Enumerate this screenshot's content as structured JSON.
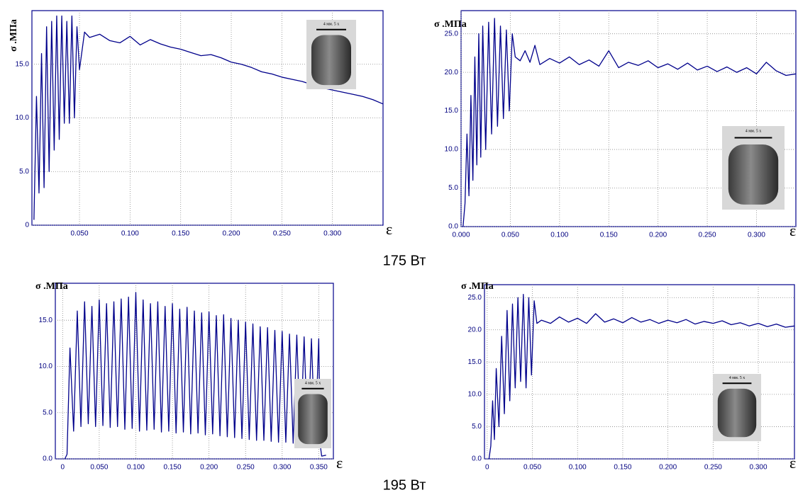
{
  "chart_data": [
    {
      "type": "line",
      "x_label": "ε",
      "y_label": "σ .МПа",
      "inset_label": "4 мм.  5 x",
      "x": [
        0.005,
        0.0075,
        0.01,
        0.0125,
        0.015,
        0.0175,
        0.02,
        0.0225,
        0.025,
        0.0275,
        0.03,
        0.0325,
        0.035,
        0.0375,
        0.04,
        0.0425,
        0.045,
        0.0475,
        0.05,
        0.055,
        0.06,
        0.07,
        0.08,
        0.09,
        0.1,
        0.11,
        0.12,
        0.13,
        0.14,
        0.15,
        0.16,
        0.17,
        0.18,
        0.19,
        0.2,
        0.21,
        0.22,
        0.23,
        0.24,
        0.25,
        0.26,
        0.27,
        0.28,
        0.29,
        0.3,
        0.31,
        0.32,
        0.33,
        0.34,
        0.35
      ],
      "series": [
        {
          "color": "#00008b",
          "values": [
            0.5,
            12,
            3,
            16,
            3.5,
            18.5,
            5,
            19,
            7,
            19.5,
            8,
            19.5,
            9.5,
            19,
            9.5,
            19.5,
            10,
            18.5,
            14.5,
            18,
            17.5,
            17.8,
            17.2,
            17.0,
            17.6,
            16.8,
            17.3,
            16.9,
            16.6,
            16.4,
            16.1,
            15.8,
            15.9,
            15.6,
            15.2,
            15.0,
            14.7,
            14.3,
            14.1,
            13.8,
            13.6,
            13.4,
            13.1,
            12.8,
            12.6,
            12.4,
            12.2,
            12.0,
            11.7,
            11.3
          ]
        }
      ],
      "xlim": [
        0.003,
        0.35
      ],
      "ylim": [
        0,
        20
      ],
      "xticks": [
        {
          "value": 0.05,
          "label": "0.050"
        },
        {
          "value": 0.1,
          "label": "0.100"
        },
        {
          "value": 0.15,
          "label": "0.150"
        },
        {
          "value": 0.2,
          "label": "0.200"
        },
        {
          "value": 0.25,
          "label": "0.250"
        },
        {
          "value": 0.3,
          "label": "0.300"
        }
      ],
      "yticks": [
        0,
        {
          "value": 5,
          "label": "5.0"
        },
        {
          "value": 10,
          "label": "10.0"
        },
        {
          "value": 15,
          "label": "15.0"
        }
      ],
      "grid": true
    },
    {
      "type": "line",
      "x_label": "ε",
      "y_label": "σ .МПа",
      "inset_label": "4 мм.  5 x",
      "x": [
        0.002,
        0.004,
        0.006,
        0.008,
        0.01,
        0.012,
        0.014,
        0.016,
        0.018,
        0.02,
        0.022,
        0.025,
        0.028,
        0.031,
        0.034,
        0.037,
        0.04,
        0.043,
        0.046,
        0.049,
        0.052,
        0.055,
        0.06,
        0.065,
        0.07,
        0.075,
        0.08,
        0.09,
        0.1,
        0.11,
        0.12,
        0.13,
        0.14,
        0.15,
        0.16,
        0.17,
        0.18,
        0.19,
        0.2,
        0.21,
        0.22,
        0.23,
        0.24,
        0.25,
        0.26,
        0.27,
        0.28,
        0.29,
        0.3,
        0.31,
        0.32,
        0.33,
        0.34
      ],
      "series": [
        {
          "color": "#00008b",
          "values": [
            0,
            3,
            12,
            4,
            17,
            6,
            22,
            8,
            25,
            9,
            26,
            10,
            26.5,
            12,
            27,
            13,
            26,
            14,
            25.5,
            15,
            25,
            22,
            21.5,
            22.8,
            21.3,
            23.5,
            21,
            21.8,
            21.2,
            22,
            21,
            21.6,
            20.8,
            22.8,
            20.6,
            21.3,
            20.9,
            21.5,
            20.6,
            21.1,
            20.4,
            21.2,
            20.3,
            20.8,
            20.1,
            20.7,
            20.0,
            20.6,
            19.8,
            21.3,
            20.2,
            19.6,
            19.8
          ]
        }
      ],
      "xlim": [
        0,
        0.34
      ],
      "ylim": [
        0,
        28
      ],
      "xticks": [
        {
          "value": 0,
          "label": "0.000"
        },
        {
          "value": 0.05,
          "label": "0.050"
        },
        {
          "value": 0.1,
          "label": "0.100"
        },
        {
          "value": 0.15,
          "label": "0.150"
        },
        {
          "value": 0.2,
          "label": "0.200"
        },
        {
          "value": 0.25,
          "label": "0.250"
        },
        {
          "value": 0.3,
          "label": "0.300"
        }
      ],
      "yticks": [
        {
          "value": 0,
          "label": "0.0"
        },
        {
          "value": 5,
          "label": "5.0"
        },
        {
          "value": 10,
          "label": "10.0"
        },
        {
          "value": 15,
          "label": "15.0"
        },
        {
          "value": 20,
          "label": "20.0"
        },
        {
          "value": 25,
          "label": "25.0"
        }
      ],
      "grid": true
    },
    {
      "type": "line",
      "x_label": "ε",
      "y_label": "σ .МПа",
      "inset_label": "4 мм.  5 x",
      "x": [
        0.003,
        0.006,
        0.01,
        0.015,
        0.02,
        0.025,
        0.03,
        0.035,
        0.04,
        0.045,
        0.05,
        0.055,
        0.06,
        0.065,
        0.07,
        0.075,
        0.08,
        0.085,
        0.09,
        0.095,
        0.1,
        0.105,
        0.11,
        0.115,
        0.12,
        0.125,
        0.13,
        0.135,
        0.14,
        0.145,
        0.15,
        0.155,
        0.16,
        0.165,
        0.17,
        0.175,
        0.18,
        0.185,
        0.19,
        0.195,
        0.2,
        0.205,
        0.21,
        0.215,
        0.22,
        0.225,
        0.23,
        0.235,
        0.24,
        0.245,
        0.25,
        0.255,
        0.26,
        0.265,
        0.27,
        0.275,
        0.28,
        0.285,
        0.29,
        0.295,
        0.3,
        0.305,
        0.31,
        0.315,
        0.32,
        0.325,
        0.33,
        0.335,
        0.34,
        0.345,
        0.35,
        0.352,
        0.354,
        0.36
      ],
      "series": [
        {
          "color": "#00008b",
          "values": [
            0,
            0.5,
            12,
            3,
            16,
            3.5,
            17,
            3.8,
            16.5,
            3.5,
            17.2,
            3.6,
            16.8,
            3.4,
            17,
            3.5,
            17.3,
            3.2,
            17.5,
            3.3,
            18,
            3,
            17.2,
            3.1,
            16.8,
            3.2,
            17,
            2.9,
            16.5,
            3,
            16.8,
            2.8,
            16.2,
            2.9,
            16.4,
            2.7,
            16,
            2.8,
            15.8,
            2.6,
            15.9,
            2.7,
            15.5,
            2.5,
            15.6,
            2.4,
            15.2,
            2.3,
            15,
            2.2,
            14.8,
            2.1,
            14.6,
            2,
            14.3,
            2,
            14.2,
            1.9,
            13.9,
            1.8,
            13.8,
            1.8,
            13.5,
            1.7,
            13.4,
            1.7,
            13.2,
            1.6,
            13,
            1.6,
            13,
            1.5,
            0.3,
            0.4
          ]
        }
      ],
      "xlim": [
        -0.01,
        0.37
      ],
      "ylim": [
        0,
        19
      ],
      "xticks": [
        0,
        {
          "value": 0.05,
          "label": "0.050"
        },
        {
          "value": 0.1,
          "label": "0.100"
        },
        {
          "value": 0.15,
          "label": "0.150"
        },
        {
          "value": 0.2,
          "label": "0.200"
        },
        {
          "value": 0.25,
          "label": "0.250"
        },
        {
          "value": 0.3,
          "label": "0.300"
        },
        {
          "value": 0.35,
          "label": "0.350"
        }
      ],
      "yticks": [
        {
          "value": 0,
          "label": "0.0"
        },
        {
          "value": 5,
          "label": "5.0"
        },
        {
          "value": 10,
          "label": "10.0"
        },
        {
          "value": 15,
          "label": "15.0"
        }
      ],
      "grid": true
    },
    {
      "type": "line",
      "x_label": "ε",
      "y_label": "σ .МПа",
      "inset_label": "4 мм.  5 x",
      "x": [
        0.002,
        0.004,
        0.006,
        0.008,
        0.01,
        0.013,
        0.016,
        0.019,
        0.022,
        0.025,
        0.028,
        0.031,
        0.034,
        0.037,
        0.04,
        0.043,
        0.046,
        0.049,
        0.052,
        0.055,
        0.06,
        0.07,
        0.08,
        0.09,
        0.1,
        0.11,
        0.12,
        0.13,
        0.14,
        0.15,
        0.16,
        0.17,
        0.18,
        0.19,
        0.2,
        0.21,
        0.22,
        0.23,
        0.24,
        0.25,
        0.26,
        0.27,
        0.28,
        0.29,
        0.3,
        0.31,
        0.32,
        0.33,
        0.34
      ],
      "series": [
        {
          "color": "#00008b",
          "values": [
            0,
            2,
            9,
            3,
            14,
            5,
            19,
            7,
            23,
            9,
            24,
            11,
            25,
            12,
            25.5,
            11,
            25,
            13,
            24.5,
            21,
            21.5,
            21,
            22,
            21.2,
            21.8,
            21,
            22.5,
            21.2,
            21.7,
            21.1,
            21.9,
            21.2,
            21.6,
            21,
            21.5,
            21.1,
            21.6,
            20.9,
            21.3,
            21,
            21.4,
            20.8,
            21.1,
            20.6,
            21,
            20.5,
            20.9,
            20.4,
            20.6
          ]
        }
      ],
      "xlim": [
        -0.003,
        0.34
      ],
      "ylim": [
        0,
        27
      ],
      "xticks": [
        0,
        {
          "value": 0.05,
          "label": "0.050"
        },
        {
          "value": 0.1,
          "label": "0.100"
        },
        {
          "value": 0.15,
          "label": "0.150"
        },
        {
          "value": 0.2,
          "label": "0.200"
        },
        {
          "value": 0.25,
          "label": "0.250"
        },
        {
          "value": 0.3,
          "label": "0.300"
        }
      ],
      "yticks": [
        {
          "value": 0,
          "label": "0.0"
        },
        {
          "value": 5,
          "label": "5.0"
        },
        {
          "value": 10,
          "label": "10.0"
        },
        {
          "value": 15,
          "label": "15.0"
        },
        {
          "value": 20,
          "label": "20.0"
        },
        {
          "value": 25,
          "label": "25.0"
        }
      ],
      "grid": true
    }
  ],
  "captions": [
    "175 Вт",
    "195 Вт"
  ]
}
